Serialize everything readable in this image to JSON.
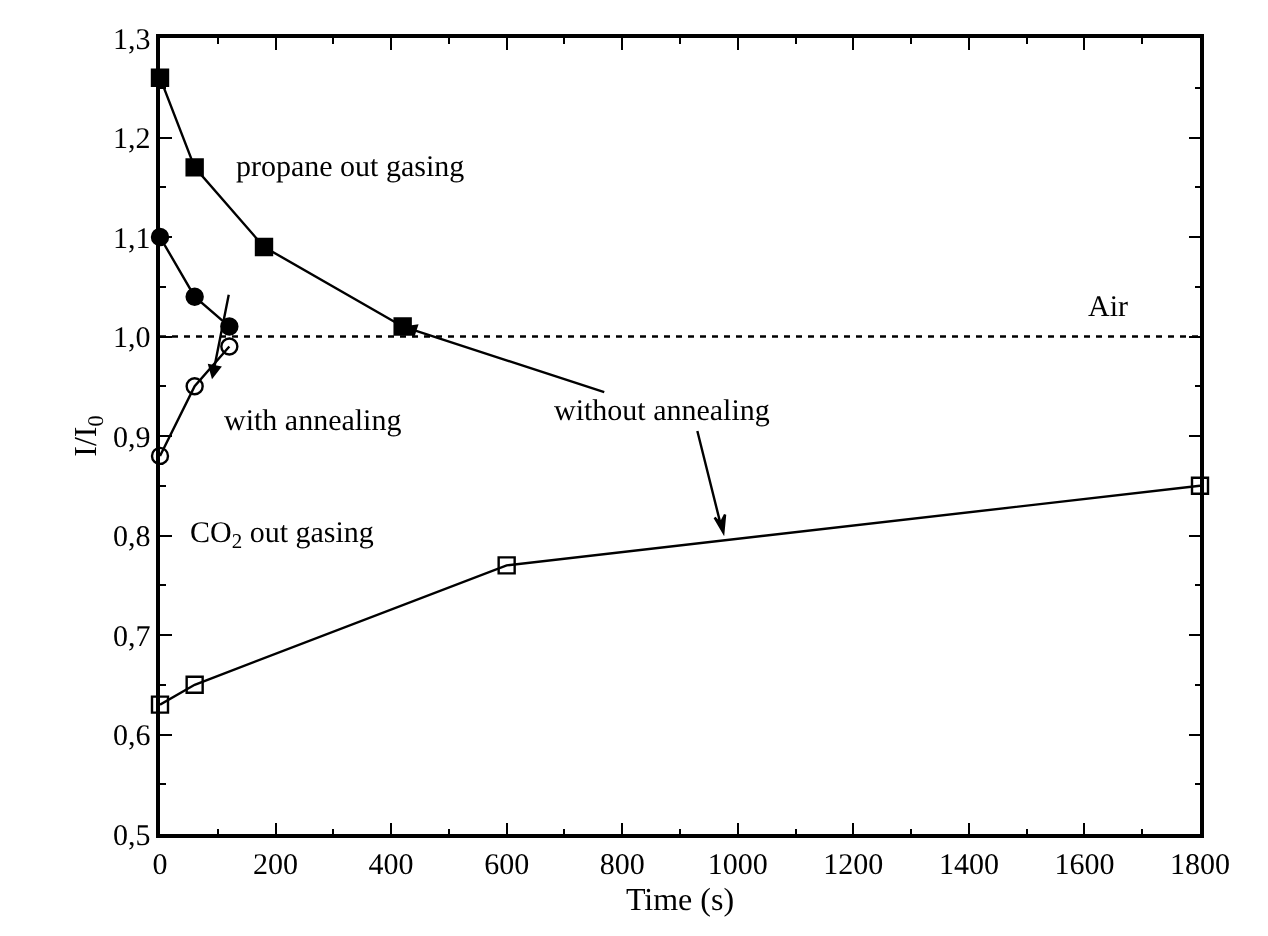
{
  "chart_data": {
    "type": "line",
    "xlabel": "Time (s)",
    "ylabel": "I/I$_{0}$",
    "xlim": [
      0,
      1800
    ],
    "xticks": [
      0,
      200,
      400,
      600,
      800,
      1000,
      1200,
      1400,
      1600,
      1800
    ],
    "ylim": [
      0.5,
      1.3
    ],
    "yticks": [
      {
        "value": 0.5,
        "label": "0,5"
      },
      {
        "value": 0.6,
        "label": "0,6"
      },
      {
        "value": 0.7,
        "label": "0,7"
      },
      {
        "value": 0.8,
        "label": "0,8"
      },
      {
        "value": 0.9,
        "label": "0,9"
      },
      {
        "value": 1.0,
        "label": "1,0"
      },
      {
        "value": 1.1,
        "label": "1,1"
      },
      {
        "value": 1.2,
        "label": "1,2"
      },
      {
        "value": 1.3,
        "label": "1,3"
      }
    ],
    "line_style": "solid",
    "series": [
      {
        "color": "#000000",
        "marker": "square",
        "x": [
          0,
          60,
          180,
          420
        ],
        "values": [
          1.26,
          1.17,
          1.09,
          1.01
        ]
      },
      {
        "color": "#000000",
        "marker": "circle",
        "x": [
          0,
          60,
          120
        ],
        "values": [
          1.1,
          1.04,
          1.01
        ]
      },
      {
        "color": "#000000",
        "marker": "circle-open",
        "x": [
          0,
          60,
          120
        ],
        "values": [
          0.88,
          0.95,
          0.99
        ]
      },
      {
        "color": "#000000",
        "marker": "square-open",
        "x": [
          0,
          60,
          600,
          1800
        ],
        "values": [
          0.63,
          0.65,
          0.77,
          0.85
        ]
      }
    ],
    "ref_lines": [
      {
        "axis": "y",
        "value": 1.0,
        "label": "Air",
        "line_style": "dotted",
        "color": "#000000"
      }
    ],
    "annotations": [
      "propane out gasing",
      "with annealing",
      {
        "text": "without annealing",
        "x": 420,
        "y": 1.01
      },
      "CO$_{2}$ out gasing"
    ]
  }
}
